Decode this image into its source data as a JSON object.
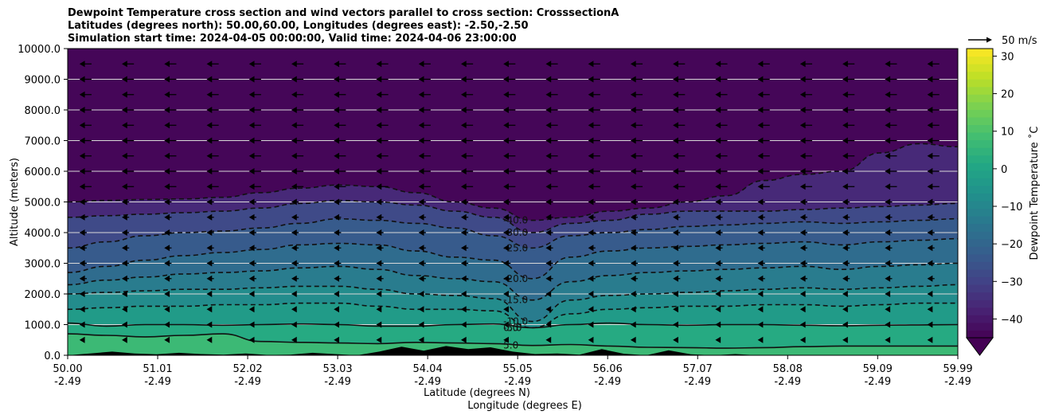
{
  "title": {
    "line1": "Dewpoint Temperature cross section and wind vectors parallel to cross section: CrosssectionA",
    "line2": "Latitudes (degrees north): 50.00,60.00, Longitudes (degrees east): -2.50,-2.50",
    "line3": "Simulation start time: 2024-04-05 00:00:00, Valid time: 2024-04-06 23:00:00"
  },
  "colors": {
    "viridis": [
      "#440154",
      "#482475",
      "#414487",
      "#355f8d",
      "#2a788e",
      "#21918c",
      "#22a884",
      "#44bf70",
      "#7ad151",
      "#bddf26",
      "#fde725"
    ],
    "contour": "#111111",
    "terrain": "#000000",
    "gridline": "#d8d8d8"
  },
  "chart_data": {
    "type": "heatmap",
    "variable": "Dewpoint Temperature",
    "unit": "°C",
    "ylabel": "Altitude (meters)",
    "xlabel_1": "Latitude (degrees N)",
    "xlabel_2": "Longitude (degrees E)",
    "ylim": [
      0,
      10000
    ],
    "xlim": [
      50.0,
      59.99
    ],
    "y_ticks": [
      "0.0",
      "1000.0",
      "2000.0",
      "3000.0",
      "4000.0",
      "5000.0",
      "6000.0",
      "7000.0",
      "8000.0",
      "9000.0",
      "10000.0"
    ],
    "x_ticks": [
      {
        "lat": "50.00",
        "lon": "-2.49"
      },
      {
        "lat": "51.01",
        "lon": "-2.49"
      },
      {
        "lat": "52.02",
        "lon": "-2.49"
      },
      {
        "lat": "53.03",
        "lon": "-2.49"
      },
      {
        "lat": "54.04",
        "lon": "-2.49"
      },
      {
        "lat": "55.05",
        "lon": "-2.49"
      },
      {
        "lat": "56.06",
        "lon": "-2.49"
      },
      {
        "lat": "57.07",
        "lon": "-2.49"
      },
      {
        "lat": "58.08",
        "lon": "-2.49"
      },
      {
        "lat": "59.09",
        "lon": "-2.49"
      },
      {
        "lat": "59.99",
        "lon": "-2.49"
      }
    ],
    "colorbar": {
      "label": "Dewpoint Temperature $^\\circ$C",
      "range": [
        -45,
        32
      ],
      "ticks": [
        "−40",
        "−30",
        "−20",
        "−10",
        "0",
        "10",
        "20",
        "30"
      ],
      "extend": "min"
    },
    "wind_key": {
      "label": "50 m/s"
    },
    "gridlines": true,
    "contour_levels": [
      -40,
      -30,
      -25,
      -20,
      -15,
      -10,
      -5,
      0,
      5
    ],
    "contour_labels": [
      "-40.0",
      "-30.0",
      "-25.0",
      "-20.0",
      "-15.0",
      "-10.0",
      "-5.0",
      "0.0",
      "5.0"
    ],
    "contour_label_lat": 55.05,
    "contours": [
      {
        "level": -40,
        "alt": [
          5000,
          5050,
          5080,
          5100,
          5150,
          5300,
          5450,
          5550,
          5500,
          5300,
          5000,
          4800,
          4400,
          4500,
          4700,
          4800,
          5000,
          5200,
          5700,
          5900,
          6000,
          6600,
          6900,
          6800
        ]
      },
      {
        "level": -30,
        "alt": [
          4500,
          4550,
          4600,
          4650,
          4700,
          4800,
          4950,
          5050,
          5000,
          4900,
          4700,
          4500,
          4000,
          4300,
          4400,
          4600,
          4700,
          4700,
          4700,
          4750,
          4800,
          4850,
          4900,
          4950
        ]
      },
      {
        "level": -25,
        "alt": [
          3500,
          3700,
          3900,
          4000,
          4050,
          4150,
          4300,
          4450,
          4400,
          4300,
          4150,
          3900,
          3500,
          3900,
          4000,
          4100,
          4200,
          4250,
          4300,
          4350,
          4300,
          4350,
          4400,
          4450
        ]
      },
      {
        "level": -20,
        "alt": [
          2700,
          2900,
          3100,
          3250,
          3350,
          3450,
          3600,
          3650,
          3600,
          3400,
          3200,
          3100,
          2500,
          3200,
          3400,
          3500,
          3550,
          3600,
          3650,
          3700,
          3600,
          3700,
          3750,
          3800
        ]
      },
      {
        "level": -15,
        "alt": [
          2300,
          2450,
          2550,
          2650,
          2700,
          2750,
          2850,
          2900,
          2800,
          2600,
          2500,
          2400,
          1800,
          2400,
          2600,
          2700,
          2750,
          2800,
          2850,
          2900,
          2800,
          2900,
          2950,
          3000
        ]
      },
      {
        "level": -10,
        "alt": [
          2000,
          2050,
          2100,
          2150,
          2150,
          2200,
          2250,
          2250,
          2150,
          2000,
          1950,
          1850,
          1100,
          1800,
          1950,
          2000,
          2050,
          2100,
          2150,
          2200,
          2150,
          2200,
          2250,
          2300
        ]
      },
      {
        "level": -5,
        "alt": [
          1500,
          1550,
          1600,
          1600,
          1650,
          1650,
          1700,
          1700,
          1600,
          1500,
          1500,
          1450,
          900,
          1350,
          1500,
          1550,
          1600,
          1600,
          1650,
          1650,
          1600,
          1650,
          1700,
          1700
        ]
      },
      {
        "level": 0,
        "alt": [
          1050,
          950,
          1000,
          1000,
          980,
          1000,
          1020,
          1000,
          950,
          950,
          1000,
          1020,
          900,
          1000,
          1050,
          1000,
          980,
          1000,
          1000,
          980,
          960,
          980,
          990,
          1000
        ]
      },
      {
        "level": 5,
        "alt": [
          700,
          650,
          600,
          650,
          700,
          450,
          420,
          400,
          380,
          420,
          400,
          380,
          320,
          350,
          300,
          260,
          250,
          230,
          250,
          280,
          300,
          300,
          300,
          300
        ]
      }
    ],
    "terrain_alt": [
      0,
      60,
      120,
      60,
      30,
      80,
      40,
      20,
      60,
      10,
      20,
      80,
      40,
      0,
      120,
      280,
      150,
      300,
      200,
      260,
      120,
      40,
      60,
      20,
      200,
      50,
      0,
      160,
      30,
      0,
      40,
      0,
      0,
      0,
      0,
      0,
      0,
      0,
      0,
      0,
      0
    ]
  }
}
